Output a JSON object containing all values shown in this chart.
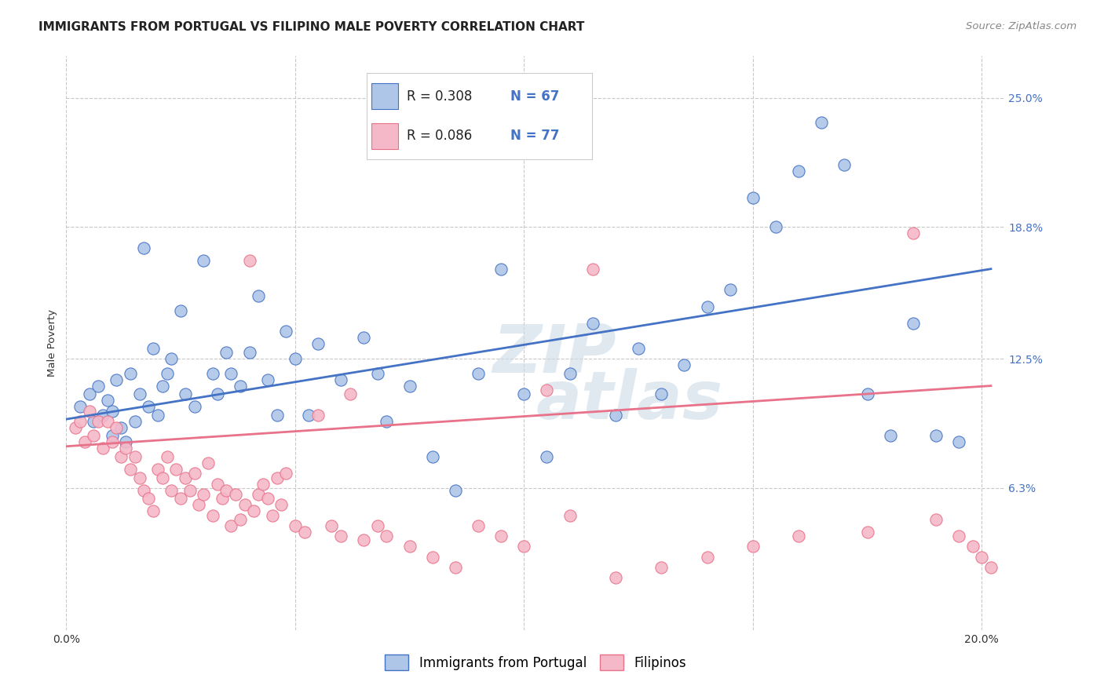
{
  "title": "IMMIGRANTS FROM PORTUGAL VS FILIPINO MALE POVERTY CORRELATION CHART",
  "source": "Source: ZipAtlas.com",
  "ylabel": "Male Poverty",
  "xlim": [
    0.0,
    0.205
  ],
  "ylim": [
    -0.005,
    0.27
  ],
  "ytick_positions": [
    0.063,
    0.125,
    0.188,
    0.25
  ],
  "ytick_labels": [
    "6.3%",
    "12.5%",
    "18.8%",
    "25.0%"
  ],
  "xtick_positions": [
    0.0,
    0.05,
    0.1,
    0.15,
    0.2
  ],
  "xticklabels": [
    "0.0%",
    "",
    "",
    "",
    "20.0%"
  ],
  "watermark_line1": "ZIP",
  "watermark_line2": "atlas",
  "color_blue": "#aec6e8",
  "color_pink": "#f5b8c8",
  "line_blue": "#4472c4",
  "line_pink": "#e8728a",
  "text_blue": "#4472c4",
  "text_darkblue": "#1a4090",
  "legend_r1": "R = 0.308",
  "legend_n1": "N = 67",
  "legend_r2": "R = 0.086",
  "legend_n2": "N = 77",
  "blue_scatter_x": [
    0.003,
    0.005,
    0.006,
    0.007,
    0.008,
    0.009,
    0.01,
    0.01,
    0.011,
    0.012,
    0.013,
    0.014,
    0.015,
    0.016,
    0.017,
    0.018,
    0.019,
    0.02,
    0.021,
    0.022,
    0.023,
    0.025,
    0.026,
    0.028,
    0.03,
    0.032,
    0.033,
    0.035,
    0.036,
    0.038,
    0.04,
    0.042,
    0.044,
    0.046,
    0.048,
    0.05,
    0.053,
    0.055,
    0.06,
    0.065,
    0.068,
    0.07,
    0.075,
    0.08,
    0.085,
    0.09,
    0.095,
    0.1,
    0.105,
    0.11,
    0.115,
    0.12,
    0.125,
    0.13,
    0.135,
    0.14,
    0.145,
    0.15,
    0.155,
    0.16,
    0.165,
    0.17,
    0.175,
    0.18,
    0.185,
    0.19,
    0.195
  ],
  "blue_scatter_y": [
    0.102,
    0.108,
    0.095,
    0.112,
    0.098,
    0.105,
    0.1,
    0.088,
    0.115,
    0.092,
    0.085,
    0.118,
    0.095,
    0.108,
    0.178,
    0.102,
    0.13,
    0.098,
    0.112,
    0.118,
    0.125,
    0.148,
    0.108,
    0.102,
    0.172,
    0.118,
    0.108,
    0.128,
    0.118,
    0.112,
    0.128,
    0.155,
    0.115,
    0.098,
    0.138,
    0.125,
    0.098,
    0.132,
    0.115,
    0.135,
    0.118,
    0.095,
    0.112,
    0.078,
    0.062,
    0.118,
    0.168,
    0.108,
    0.078,
    0.118,
    0.142,
    0.098,
    0.13,
    0.108,
    0.122,
    0.15,
    0.158,
    0.202,
    0.188,
    0.215,
    0.238,
    0.218,
    0.108,
    0.088,
    0.142,
    0.088,
    0.085
  ],
  "pink_scatter_x": [
    0.002,
    0.003,
    0.004,
    0.005,
    0.006,
    0.007,
    0.008,
    0.009,
    0.01,
    0.011,
    0.012,
    0.013,
    0.014,
    0.015,
    0.016,
    0.017,
    0.018,
    0.019,
    0.02,
    0.021,
    0.022,
    0.023,
    0.024,
    0.025,
    0.026,
    0.027,
    0.028,
    0.029,
    0.03,
    0.031,
    0.032,
    0.033,
    0.034,
    0.035,
    0.036,
    0.037,
    0.038,
    0.039,
    0.04,
    0.041,
    0.042,
    0.043,
    0.044,
    0.045,
    0.046,
    0.047,
    0.048,
    0.05,
    0.052,
    0.055,
    0.058,
    0.06,
    0.062,
    0.065,
    0.068,
    0.07,
    0.075,
    0.08,
    0.085,
    0.09,
    0.095,
    0.1,
    0.105,
    0.11,
    0.115,
    0.12,
    0.13,
    0.14,
    0.15,
    0.16,
    0.175,
    0.185,
    0.19,
    0.195,
    0.198,
    0.2,
    0.202
  ],
  "pink_scatter_y": [
    0.092,
    0.095,
    0.085,
    0.1,
    0.088,
    0.095,
    0.082,
    0.095,
    0.085,
    0.092,
    0.078,
    0.082,
    0.072,
    0.078,
    0.068,
    0.062,
    0.058,
    0.052,
    0.072,
    0.068,
    0.078,
    0.062,
    0.072,
    0.058,
    0.068,
    0.062,
    0.07,
    0.055,
    0.06,
    0.075,
    0.05,
    0.065,
    0.058,
    0.062,
    0.045,
    0.06,
    0.048,
    0.055,
    0.172,
    0.052,
    0.06,
    0.065,
    0.058,
    0.05,
    0.068,
    0.055,
    0.07,
    0.045,
    0.042,
    0.098,
    0.045,
    0.04,
    0.108,
    0.038,
    0.045,
    0.04,
    0.035,
    0.03,
    0.025,
    0.045,
    0.04,
    0.035,
    0.11,
    0.05,
    0.168,
    0.02,
    0.025,
    0.03,
    0.035,
    0.04,
    0.042,
    0.185,
    0.048,
    0.04,
    0.035,
    0.03,
    0.025
  ],
  "blue_line_x": [
    0.0,
    0.202
  ],
  "blue_line_y_start": 0.096,
  "blue_line_y_end": 0.168,
  "pink_line_x": [
    0.0,
    0.202
  ],
  "pink_line_y_start": 0.083,
  "pink_line_y_end": 0.112,
  "title_fontsize": 11,
  "axis_fontsize": 9.5,
  "tick_fontsize": 10,
  "legend_fontsize": 12,
  "source_fontsize": 9.5,
  "background_color": "#ffffff",
  "grid_color": "#c8c8c8"
}
